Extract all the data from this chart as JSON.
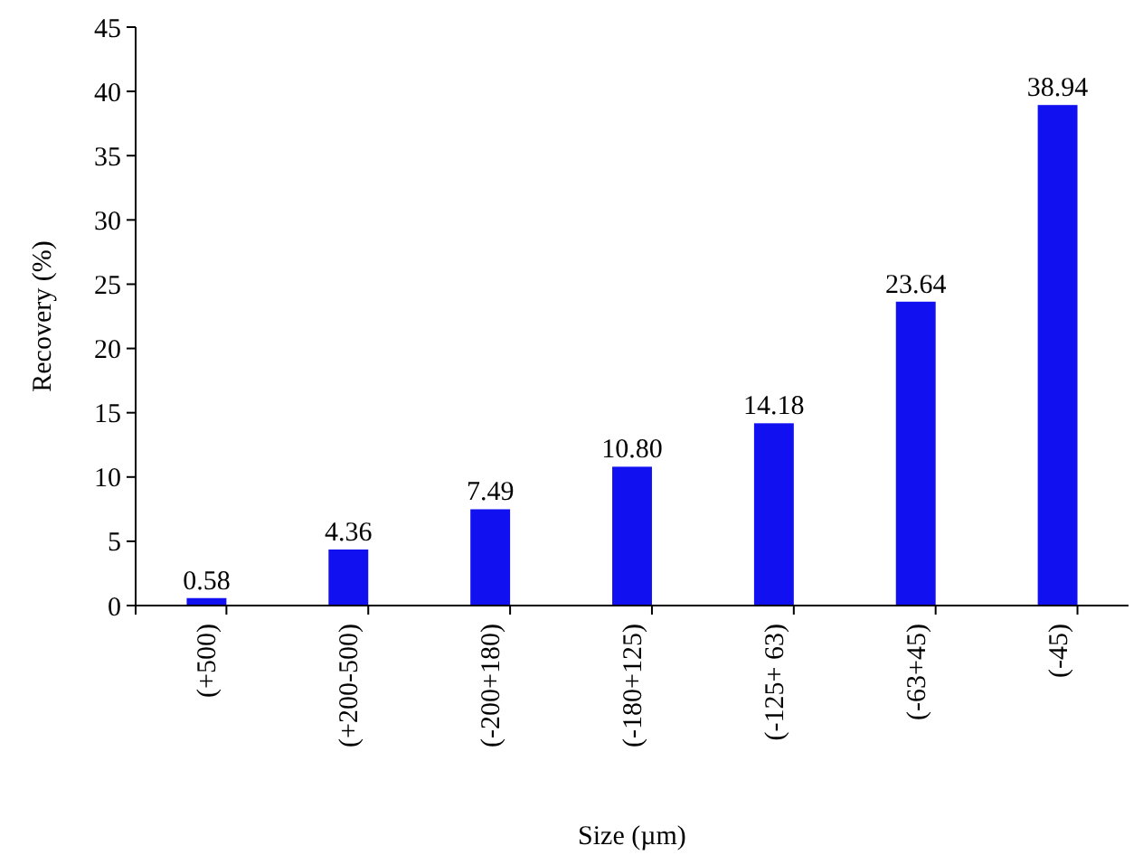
{
  "chart_data": {
    "type": "bar",
    "xlabel": "Size (µm)",
    "ylabel": "Recovery (%)",
    "categories": [
      "(+500)",
      "(+200-500)",
      "(-200+180)",
      "(-180+125)",
      "(-125+ 63)",
      "(-63+45)",
      "(-45)"
    ],
    "values": [
      0.58,
      4.36,
      7.49,
      10.8,
      14.18,
      23.64,
      38.94
    ],
    "value_labels": [
      "0.58",
      "4.36",
      "7.49",
      "10.80",
      "14.18",
      "23.64",
      "38.94"
    ],
    "color": "#1010f0",
    "ylim": [
      0,
      45
    ],
    "yticks": [
      0,
      5,
      10,
      15,
      20,
      25,
      30,
      35,
      40,
      45
    ],
    "grid": false
  }
}
